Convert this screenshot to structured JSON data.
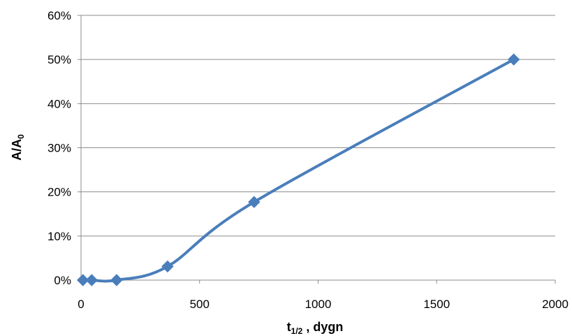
{
  "chart_data": {
    "type": "line",
    "title": "",
    "xlabel": {
      "main": "t",
      "sub": "1/2",
      "suffix": " , dygn"
    },
    "ylabel": {
      "main": "A/A",
      "sub": "0"
    },
    "xlim": [
      0,
      2000
    ],
    "ylim": [
      0,
      60
    ],
    "xticks": [
      {
        "value": 0,
        "label": "0"
      },
      {
        "value": 500,
        "label": "500"
      },
      {
        "value": 1000,
        "label": "1000"
      },
      {
        "value": 1500,
        "label": "1500"
      },
      {
        "value": 2000,
        "label": "2000"
      }
    ],
    "yticks": [
      {
        "value": 0,
        "label": "0%"
      },
      {
        "value": 10,
        "label": "10%"
      },
      {
        "value": 20,
        "label": "20%"
      },
      {
        "value": 30,
        "label": "30%"
      },
      {
        "value": 40,
        "label": "40%"
      },
      {
        "value": 50,
        "label": "50%"
      },
      {
        "value": 60,
        "label": "60%"
      }
    ],
    "grid": "horizontal",
    "legend": "none",
    "smooth": true,
    "marker": "diamond",
    "color": "#4a7ebb",
    "series": [
      {
        "points": [
          {
            "x": 8,
            "y": 0
          },
          {
            "x": 45,
            "y": 0
          },
          {
            "x": 150,
            "y": 0
          },
          {
            "x": 365,
            "y": 3.1
          },
          {
            "x": 730,
            "y": 17.7
          },
          {
            "x": 1825,
            "y": 50
          }
        ]
      }
    ]
  }
}
